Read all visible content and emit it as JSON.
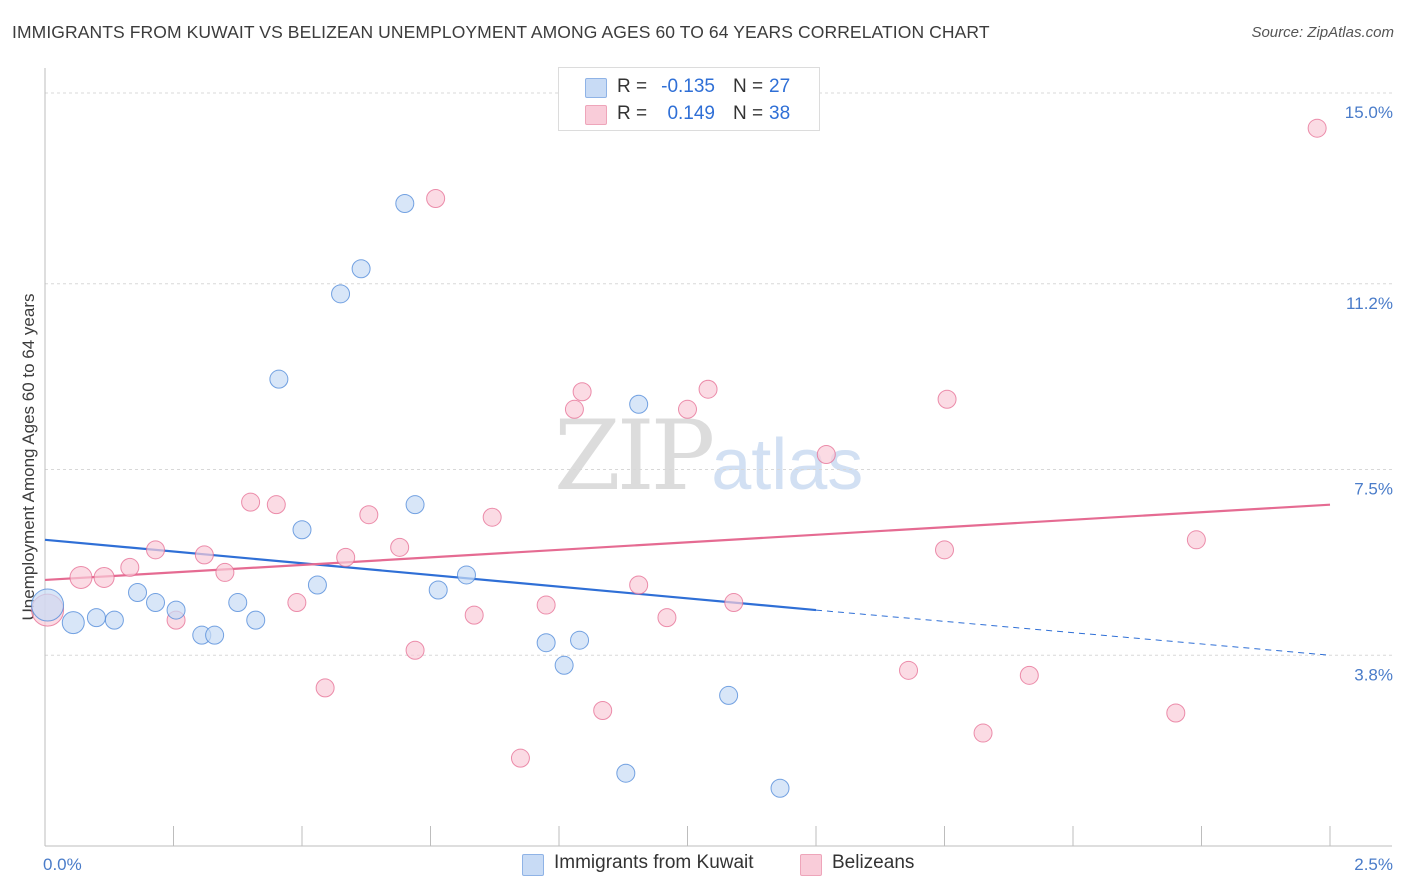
{
  "header": {
    "title": "IMMIGRANTS FROM KUWAIT VS BELIZEAN UNEMPLOYMENT AMONG AGES 60 TO 64 YEARS CORRELATION CHART",
    "source": "Source: ZipAtlas.com"
  },
  "watermark": {
    "zip": "ZIP",
    "atlas": "atlas"
  },
  "legend": {
    "rows": [
      {
        "r_label": "R =",
        "r_value": "-0.135",
        "n_label": "N =",
        "n_value": "27",
        "color": "#aecbf2"
      },
      {
        "r_label": "R =",
        "r_value": "0.149",
        "n_label": "N =",
        "n_value": "38",
        "color": "#f7bccd"
      }
    ]
  },
  "bottom_legend": {
    "items": [
      {
        "label": "Immigrants from Kuwait",
        "color": "#aecbf2"
      },
      {
        "label": "Belizeans",
        "color": "#f7bccd"
      }
    ]
  },
  "chart_data": {
    "type": "scatter",
    "title": "IMMIGRANTS FROM KUWAIT VS BELIZEAN UNEMPLOYMENT AMONG AGES 60 TO 64 YEARS CORRELATION CHART",
    "xlabel": "",
    "ylabel": "Unemployment Among Ages 60 to 64 years",
    "xlim": [
      0,
      2.5
    ],
    "ylim": [
      0,
      15.3
    ],
    "x_tick_labels": [
      "0.0%",
      "2.5%"
    ],
    "y_ticks": [
      3.8,
      7.5,
      11.2,
      15.0
    ],
    "y_tick_labels": [
      "3.8%",
      "7.5%",
      "11.2%",
      "15.0%"
    ],
    "grid": true,
    "legend_position": "top-center",
    "series": [
      {
        "name": "Immigrants from Kuwait",
        "color": "#4a86d8",
        "fill": "#c8dbf5",
        "trend": {
          "x": [
            0,
            1.5
          ],
          "y": [
            6.1,
            4.7
          ],
          "dashed_extension": [
            1.5,
            2.5
          ],
          "dashed_y_end": 3.8,
          "color": "#2f6fd6"
        },
        "points": [
          [
            0.005,
            4.8,
            16
          ],
          [
            0.055,
            4.45,
            11
          ],
          [
            0.1,
            4.55,
            9
          ],
          [
            0.135,
            4.5,
            9
          ],
          [
            0.18,
            5.05,
            9
          ],
          [
            0.215,
            4.85,
            9
          ],
          [
            0.255,
            4.7,
            9
          ],
          [
            0.305,
            4.2,
            9
          ],
          [
            0.33,
            4.2,
            9
          ],
          [
            0.375,
            4.85,
            9
          ],
          [
            0.41,
            4.5,
            9
          ],
          [
            0.455,
            9.3,
            9
          ],
          [
            0.5,
            6.3,
            9
          ],
          [
            0.53,
            5.2,
            9
          ],
          [
            0.575,
            11.0,
            9
          ],
          [
            0.615,
            11.5,
            9
          ],
          [
            0.7,
            12.8,
            9
          ],
          [
            0.72,
            6.8,
            9
          ],
          [
            0.765,
            5.1,
            9
          ],
          [
            0.82,
            5.4,
            9
          ],
          [
            0.975,
            4.05,
            9
          ],
          [
            1.01,
            3.6,
            9
          ],
          [
            1.04,
            4.1,
            9
          ],
          [
            1.13,
            1.45,
            9
          ],
          [
            1.155,
            8.8,
            9
          ],
          [
            1.33,
            3.0,
            9
          ],
          [
            1.43,
            1.15,
            9
          ]
        ]
      },
      {
        "name": "Belizeans",
        "color": "#e56b92",
        "fill": "#f9ccd9",
        "trend": {
          "x": [
            0,
            2.5
          ],
          "y": [
            5.3,
            6.8
          ],
          "color": "#e56b92"
        },
        "points": [
          [
            0.005,
            4.7,
            16
          ],
          [
            0.07,
            5.35,
            11
          ],
          [
            0.115,
            5.35,
            10
          ],
          [
            0.165,
            5.55,
            9
          ],
          [
            0.215,
            5.9,
            9
          ],
          [
            0.255,
            4.5,
            9
          ],
          [
            0.31,
            5.8,
            9
          ],
          [
            0.35,
            5.45,
            9
          ],
          [
            0.4,
            6.85,
            9
          ],
          [
            0.45,
            6.8,
            9
          ],
          [
            0.49,
            4.85,
            9
          ],
          [
            0.545,
            3.15,
            9
          ],
          [
            0.585,
            5.75,
            9
          ],
          [
            0.63,
            6.6,
            9
          ],
          [
            0.69,
            5.95,
            9
          ],
          [
            0.72,
            3.9,
            9
          ],
          [
            0.76,
            12.9,
            9
          ],
          [
            0.835,
            4.6,
            9
          ],
          [
            0.87,
            6.55,
            9
          ],
          [
            0.925,
            1.75,
            9
          ],
          [
            0.975,
            4.8,
            9
          ],
          [
            1.03,
            8.7,
            9
          ],
          [
            1.045,
            9.05,
            9
          ],
          [
            1.085,
            2.7,
            9
          ],
          [
            1.155,
            5.2,
            9
          ],
          [
            1.21,
            4.55,
            9
          ],
          [
            1.25,
            8.7,
            9
          ],
          [
            1.29,
            9.1,
            9
          ],
          [
            1.34,
            4.85,
            9
          ],
          [
            1.52,
            7.8,
            9
          ],
          [
            1.68,
            3.5,
            9
          ],
          [
            1.75,
            5.9,
            9
          ],
          [
            1.755,
            8.9,
            9
          ],
          [
            1.825,
            2.25,
            9
          ],
          [
            1.915,
            3.4,
            9
          ],
          [
            2.2,
            2.65,
            9
          ],
          [
            2.24,
            6.1,
            9
          ],
          [
            2.475,
            14.3,
            9
          ]
        ]
      }
    ]
  }
}
